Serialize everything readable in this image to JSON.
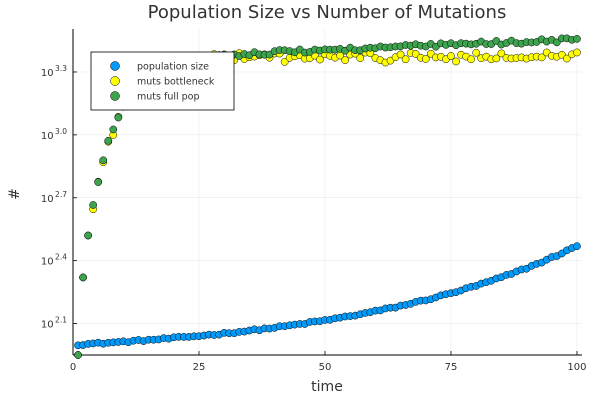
{
  "chart_data": {
    "type": "scatter",
    "title": "Population Size vs Number of Mutations",
    "xlabel": "time",
    "ylabel": "#",
    "xlim": [
      0,
      101
    ],
    "ylim_log10": [
      1.95,
      3.505
    ],
    "yscale": "log10",
    "grid": true,
    "legend_placement": "top-left",
    "x_ticks": [
      {
        "value": 0,
        "label": "0"
      },
      {
        "value": 25,
        "label": "25"
      },
      {
        "value": 50,
        "label": "50"
      },
      {
        "value": 75,
        "label": "75"
      },
      {
        "value": 100,
        "label": "100"
      }
    ],
    "y_ticks": [
      {
        "value_log10": 2.1,
        "base": "10",
        "exponent": "2.1"
      },
      {
        "value_log10": 2.4,
        "base": "10",
        "exponent": "2.4"
      },
      {
        "value_log10": 2.7,
        "base": "10",
        "exponent": "2.7"
      },
      {
        "value_log10": 3.0,
        "base": "10",
        "exponent": "3.0"
      },
      {
        "value_log10": 3.3,
        "base": "10",
        "exponent": "3.3"
      }
    ],
    "series": [
      {
        "name": "population size",
        "color": "#009AFA",
        "curve_log10": {
          "start": 2.0,
          "end": 2.47,
          "shape": "exp_shape",
          "k": 2.2,
          "noise": 0.004
        }
      },
      {
        "name": "muts bottleneck",
        "color": "#FFFF00",
        "points_log10": [
          [
            1,
            1.95
          ],
          [
            2,
            2.32
          ],
          [
            3,
            2.52
          ]
        ],
        "curve_log10": {
          "shape": "saturation",
          "from": 4,
          "to": 100,
          "plateau": 3.37,
          "amp": 0.72,
          "tau": 5.5,
          "drift": 0.0,
          "jitter": 0.025
        }
      },
      {
        "name": "muts full pop",
        "color": "#3DA44D",
        "points_log10": [
          [
            1,
            1.95
          ],
          [
            2,
            2.32
          ],
          [
            3,
            2.52
          ]
        ],
        "curve_log10": {
          "shape": "saturation",
          "from": 4,
          "to": 100,
          "plateau": 3.38,
          "amp": 0.72,
          "tau": 5.5,
          "drift": 0.075,
          "jitter": 0.01
        }
      }
    ]
  }
}
